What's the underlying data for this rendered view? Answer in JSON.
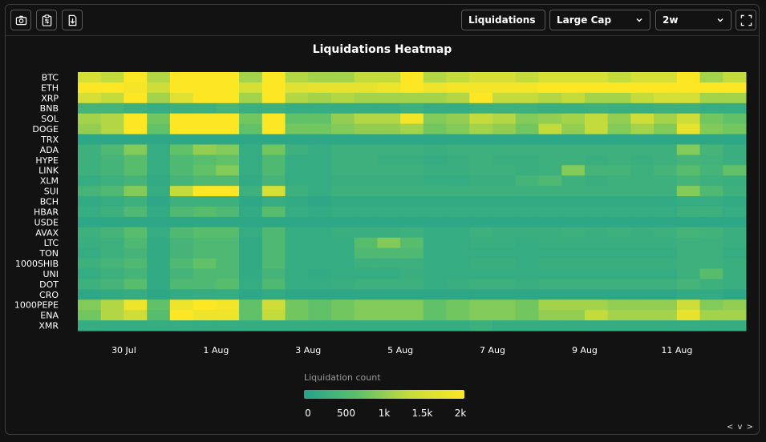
{
  "toolbar": {
    "icons": [
      "camera-icon",
      "clipboard-icon",
      "download-icon"
    ],
    "metric_select": "Liquidations",
    "cap_select": "Large Cap",
    "range_select": "2w",
    "fullscreen_icon": "fullscreen-icon"
  },
  "chart_data": {
    "type": "heatmap",
    "title": "Liquidations Heatmap",
    "rows": [
      "BTC",
      "ETH",
      "XRP",
      "BNB",
      "SOL",
      "DOGE",
      "TRX",
      "ADA",
      "HYPE",
      "LINK",
      "XLM",
      "SUI",
      "BCH",
      "HBAR",
      "USDE",
      "AVAX",
      "LTC",
      "TON",
      "1000SHIB",
      "UNI",
      "DOT",
      "CRO",
      "1000PEPE",
      "ENA",
      "XMR"
    ],
    "x_tick_labels": [
      "30 Jul",
      "1 Aug",
      "3 Aug",
      "5 Aug",
      "7 Aug",
      "9 Aug",
      "11 Aug"
    ],
    "columns": 29,
    "colorbar": {
      "title": "Liquidation count",
      "ticks": [
        "0",
        "500",
        "1k",
        "1.5k",
        "2k"
      ],
      "range": [
        0,
        2000
      ],
      "colors": [
        "#26a38c",
        "#5cc06a",
        "#c9dc3a",
        "#fde725"
      ]
    },
    "values": [
      [
        1500,
        1300,
        2000,
        1200,
        2000,
        2000,
        2000,
        1100,
        2000,
        1200,
        1100,
        1100,
        1300,
        1300,
        2000,
        1200,
        1300,
        1500,
        1500,
        1300,
        1500,
        1500,
        1500,
        1300,
        1500,
        1500,
        2000,
        1100,
        1300
      ],
      [
        2000,
        2000,
        1900,
        1400,
        2000,
        2000,
        2000,
        1500,
        2000,
        1600,
        1700,
        1700,
        1700,
        1800,
        2000,
        1800,
        1900,
        1900,
        1900,
        1900,
        2000,
        2000,
        2000,
        2000,
        2000,
        2000,
        2000,
        2000,
        2000
      ],
      [
        1500,
        1300,
        2000,
        1100,
        1600,
        2000,
        2000,
        1100,
        2000,
        1200,
        1100,
        1200,
        1100,
        1100,
        1100,
        1100,
        1200,
        2000,
        1300,
        1300,
        1200,
        1300,
        1100,
        1100,
        1300,
        1500,
        1500,
        1100,
        1100
      ],
      [
        400,
        400,
        300,
        200,
        300,
        300,
        400,
        250,
        300,
        200,
        200,
        200,
        200,
        200,
        300,
        200,
        200,
        300,
        300,
        300,
        250,
        250,
        300,
        250,
        250,
        300,
        300,
        200,
        200
      ],
      [
        1100,
        1200,
        2000,
        800,
        2000,
        2000,
        2000,
        800,
        2000,
        700,
        700,
        1000,
        1200,
        1200,
        1900,
        900,
        1000,
        1300,
        1200,
        900,
        1000,
        1100,
        1300,
        1000,
        1400,
        1100,
        1400,
        800,
        700
      ],
      [
        1000,
        1200,
        2000,
        700,
        2000,
        2000,
        2000,
        700,
        2000,
        800,
        800,
        900,
        1000,
        1000,
        1100,
        800,
        900,
        1100,
        1000,
        800,
        1300,
        1000,
        1300,
        900,
        1100,
        900,
        1700,
        900,
        800
      ],
      [
        100,
        100,
        100,
        100,
        100,
        100,
        100,
        100,
        100,
        100,
        100,
        100,
        100,
        100,
        100,
        100,
        100,
        100,
        100,
        100,
        100,
        100,
        100,
        100,
        100,
        100,
        100,
        100,
        100
      ],
      [
        300,
        500,
        900,
        200,
        700,
        1000,
        900,
        200,
        800,
        300,
        200,
        300,
        300,
        300,
        300,
        250,
        300,
        300,
        300,
        300,
        300,
        300,
        300,
        300,
        300,
        300,
        900,
        400,
        250
      ],
      [
        300,
        400,
        600,
        200,
        500,
        600,
        700,
        200,
        500,
        200,
        200,
        300,
        300,
        250,
        250,
        200,
        250,
        300,
        250,
        250,
        300,
        300,
        250,
        300,
        250,
        300,
        400,
        350,
        250
      ],
      [
        300,
        400,
        600,
        200,
        500,
        700,
        900,
        200,
        500,
        200,
        200,
        300,
        300,
        300,
        300,
        250,
        250,
        300,
        300,
        250,
        300,
        900,
        400,
        400,
        300,
        400,
        600,
        400,
        700
      ],
      [
        200,
        300,
        400,
        150,
        400,
        500,
        500,
        150,
        400,
        200,
        200,
        250,
        250,
        250,
        250,
        200,
        200,
        250,
        250,
        400,
        500,
        300,
        250,
        300,
        300,
        300,
        400,
        300,
        250
      ],
      [
        400,
        500,
        900,
        200,
        1300,
        2000,
        2000,
        300,
        1500,
        300,
        200,
        300,
        300,
        300,
        300,
        300,
        300,
        300,
        300,
        300,
        300,
        300,
        300,
        300,
        300,
        300,
        900,
        500,
        300
      ],
      [
        150,
        200,
        300,
        100,
        300,
        300,
        300,
        100,
        200,
        150,
        100,
        150,
        150,
        150,
        150,
        150,
        150,
        150,
        150,
        150,
        150,
        150,
        150,
        150,
        150,
        150,
        200,
        200,
        150
      ],
      [
        200,
        300,
        500,
        150,
        500,
        600,
        500,
        150,
        600,
        200,
        150,
        200,
        200,
        200,
        200,
        200,
        200,
        200,
        200,
        200,
        200,
        200,
        200,
        200,
        200,
        200,
        300,
        300,
        200
      ],
      [
        100,
        100,
        100,
        100,
        100,
        100,
        100,
        100,
        100,
        100,
        100,
        100,
        100,
        100,
        100,
        100,
        100,
        100,
        100,
        100,
        100,
        100,
        100,
        100,
        100,
        100,
        100,
        100,
        100
      ],
      [
        300,
        400,
        600,
        200,
        500,
        600,
        600,
        200,
        500,
        200,
        200,
        250,
        250,
        250,
        300,
        200,
        200,
        300,
        250,
        250,
        250,
        300,
        250,
        300,
        250,
        300,
        400,
        350,
        250
      ],
      [
        250,
        300,
        500,
        150,
        400,
        500,
        500,
        150,
        500,
        200,
        200,
        200,
        600,
        900,
        600,
        200,
        200,
        250,
        250,
        200,
        250,
        250,
        250,
        250,
        250,
        250,
        300,
        300,
        250
      ],
      [
        200,
        300,
        400,
        150,
        400,
        500,
        500,
        150,
        500,
        200,
        200,
        200,
        500,
        500,
        500,
        200,
        200,
        200,
        200,
        200,
        200,
        200,
        200,
        200,
        200,
        200,
        300,
        300,
        200
      ],
      [
        300,
        400,
        500,
        150,
        500,
        700,
        500,
        150,
        500,
        200,
        200,
        200,
        300,
        300,
        300,
        200,
        200,
        250,
        250,
        200,
        250,
        250,
        250,
        250,
        250,
        250,
        300,
        300,
        250
      ],
      [
        200,
        300,
        400,
        150,
        400,
        500,
        500,
        150,
        400,
        200,
        150,
        200,
        200,
        200,
        250,
        200,
        200,
        200,
        200,
        200,
        200,
        200,
        200,
        200,
        200,
        200,
        300,
        600,
        250
      ],
      [
        300,
        400,
        600,
        150,
        500,
        500,
        600,
        200,
        500,
        200,
        200,
        250,
        300,
        300,
        300,
        200,
        250,
        300,
        300,
        250,
        300,
        300,
        300,
        300,
        300,
        300,
        400,
        300,
        250
      ],
      [
        100,
        150,
        200,
        100,
        150,
        200,
        200,
        100,
        150,
        100,
        100,
        100,
        100,
        100,
        100,
        100,
        100,
        100,
        100,
        100,
        100,
        100,
        100,
        100,
        100,
        100,
        150,
        150,
        100
      ],
      [
        900,
        1200,
        1800,
        700,
        1800,
        2000,
        1900,
        700,
        1400,
        800,
        700,
        800,
        900,
        900,
        900,
        700,
        800,
        900,
        900,
        800,
        1100,
        1100,
        1100,
        1000,
        1000,
        1000,
        1400,
        900,
        1000
      ],
      [
        800,
        1200,
        1400,
        600,
        2000,
        1800,
        1800,
        700,
        1300,
        800,
        700,
        800,
        900,
        900,
        900,
        700,
        800,
        900,
        900,
        800,
        1000,
        1000,
        1300,
        1100,
        1100,
        1100,
        1700,
        1100,
        1100
      ],
      [
        200,
        200,
        200,
        200,
        200,
        200,
        200,
        200,
        200,
        200,
        200,
        200,
        200,
        200,
        200,
        200,
        200,
        300,
        200,
        200,
        200,
        200,
        200,
        200,
        200,
        200,
        200,
        200,
        200
      ]
    ]
  },
  "nav_label": "< v >"
}
